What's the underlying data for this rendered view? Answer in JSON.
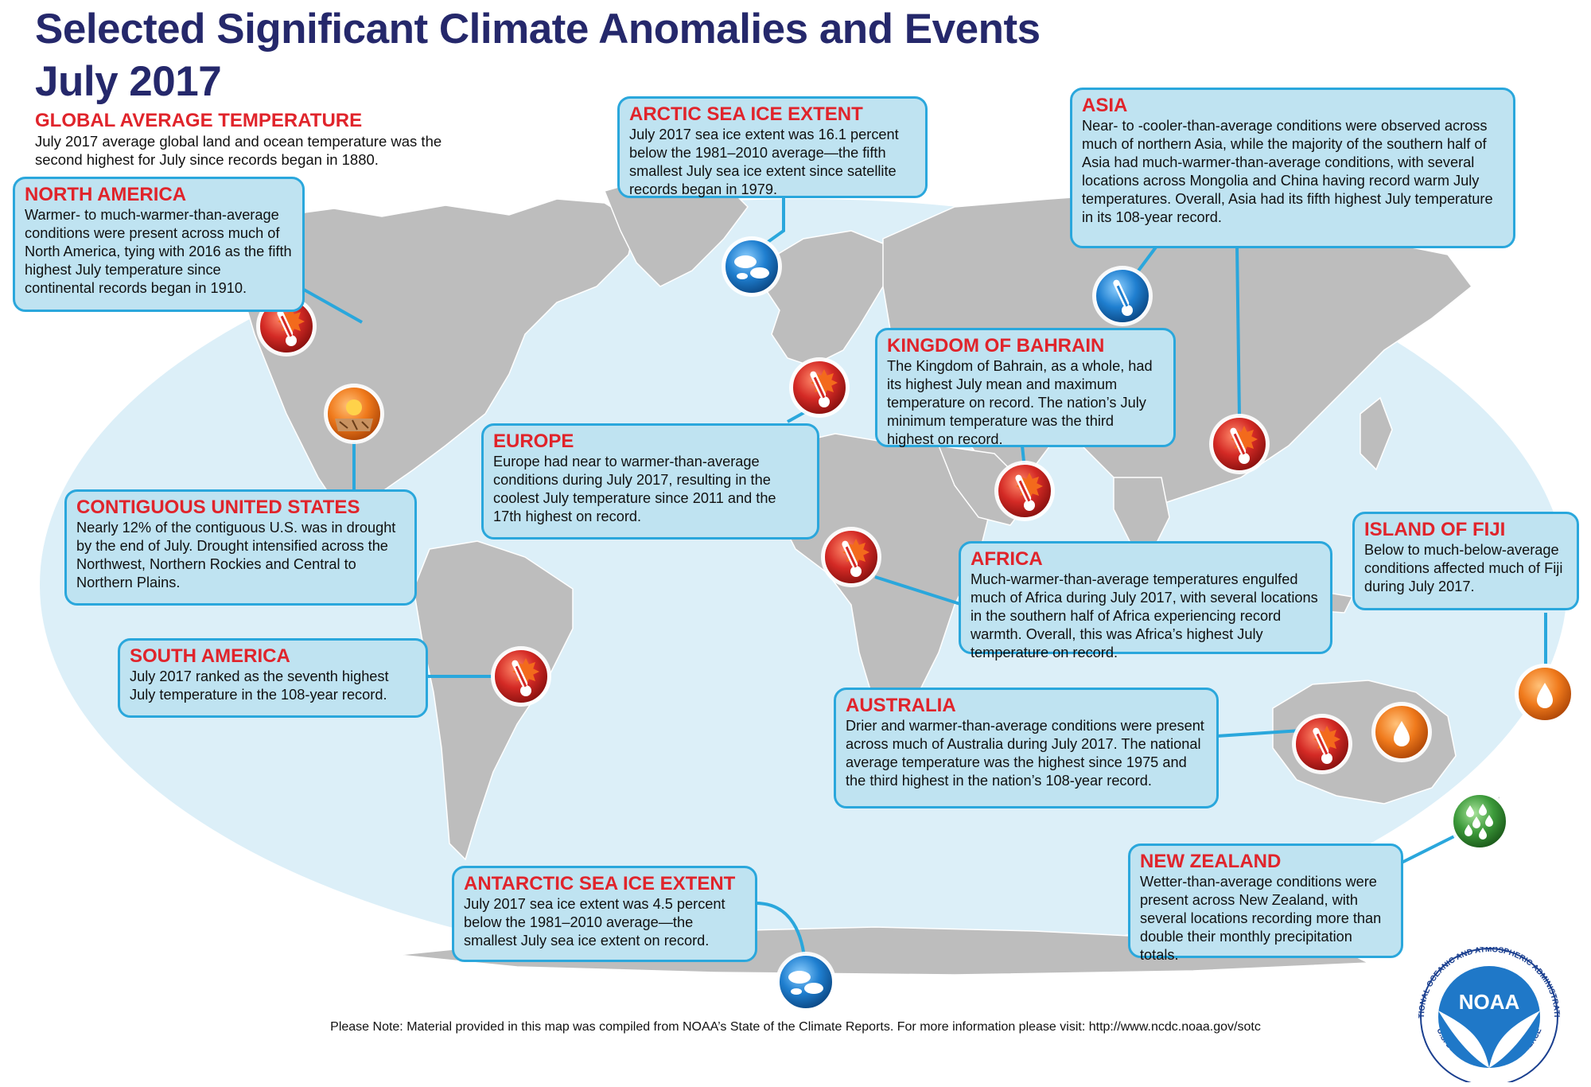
{
  "title": {
    "line1": "Selected Significant Climate Anomalies and Events",
    "line2": "July 2017"
  },
  "global": {
    "heading": "GLOBAL AVERAGE TEMPERATURE",
    "text": "July 2017 average global land and ocean temperature was the second highest for July since records began in 1880."
  },
  "regions": [
    {
      "id": "north-america",
      "heading": "NORTH AMERICA",
      "text": "Warmer- to much-warmer-than-average conditions were present across much of North America, tying with 2016 as the fifth highest July temperature since continental records began in 1910."
    },
    {
      "id": "arctic",
      "heading": "ARCTIC SEA ICE EXTENT",
      "text": "July 2017 sea ice extent was 16.1 percent below the 1981–2010 average—the fifth smallest July sea ice extent since satellite records began in 1979."
    },
    {
      "id": "asia",
      "heading": "ASIA",
      "text": "Near- to -cooler-than-average conditions were observed across much of northern Asia, while the majority of the southern half of Asia had much-warmer-than-average conditions, with several locations across Mongolia and China having record warm July temperatures. Overall, Asia had its fifth highest July temperature in its 108-year record."
    },
    {
      "id": "bahrain",
      "heading": "KINGDOM OF BAHRAIN",
      "text": "The Kingdom of Bahrain, as a whole, had its highest July mean and maximum temperature on record. The nation’s July minimum temperature was the third highest on record."
    },
    {
      "id": "europe",
      "heading": "EUROPE",
      "text": "Europe had near to warmer-than-average conditions during July 2017, resulting in the coolest July temperature since 2011 and the 17th highest on record."
    },
    {
      "id": "contiguous-us",
      "heading": "CONTIGUOUS UNITED STATES",
      "text": "Nearly 12% of the contiguous U.S. was in drought by the end of July. Drought intensified across the Northwest, Northern Rockies and Central to Northern Plains."
    },
    {
      "id": "africa",
      "heading": "AFRICA",
      "text": "Much-warmer-than-average temperatures engulfed much of Africa during July 2017, with several locations in the southern half of Africa experiencing record warmth.  Overall, this was Africa’s highest July temperature on record."
    },
    {
      "id": "fiji",
      "heading": "ISLAND OF FIJI",
      "text": "Below to much-below-average conditions affected much of Fiji during July 2017."
    },
    {
      "id": "south-america",
      "heading": "SOUTH AMERICA",
      "text": "July 2017 ranked as the seventh highest July temperature in the 108-year record."
    },
    {
      "id": "australia",
      "heading": "AUSTRALIA",
      "text": "Drier and warmer-than-average conditions were present across much of Australia during July 2017. The national average temperature was the highest since 1975 and the third highest in the nation’s 108-year record."
    },
    {
      "id": "new-zealand",
      "heading": "NEW ZEALAND",
      "text": "Wetter-than-average conditions were present across New Zealand, with several locations recording more than double their monthly precipitation totals."
    },
    {
      "id": "antarctic",
      "heading": "ANTARCTIC SEA ICE EXTENT",
      "text": "July 2017 sea ice extent was 4.5 percent below the 1981–2010 average—the smallest July sea ice extent on record."
    }
  ],
  "markers": [
    {
      "id": "north-america",
      "icon": "warm-thermometer-icon"
    },
    {
      "id": "contiguous-us",
      "icon": "drought-icon"
    },
    {
      "id": "arctic",
      "icon": "sea-ice-icon"
    },
    {
      "id": "asia-north",
      "icon": "cool-thermometer-icon"
    },
    {
      "id": "asia-south",
      "icon": "warm-thermometer-icon"
    },
    {
      "id": "bahrain",
      "icon": "warm-thermometer-icon"
    },
    {
      "id": "europe",
      "icon": "warm-thermometer-icon"
    },
    {
      "id": "africa",
      "icon": "warm-thermometer-icon"
    },
    {
      "id": "south-america",
      "icon": "warm-thermometer-icon"
    },
    {
      "id": "australia-warm",
      "icon": "warm-thermometer-icon"
    },
    {
      "id": "australia-dry",
      "icon": "dry-icon"
    },
    {
      "id": "fiji",
      "icon": "dry-icon"
    },
    {
      "id": "new-zealand",
      "icon": "wet-icon"
    },
    {
      "id": "antarctic",
      "icon": "sea-ice-icon"
    }
  ],
  "colors": {
    "title": "#25286b",
    "heading": "#e0242b",
    "box_fill": "#bfe3f1",
    "box_border": "#2aa7dc",
    "ocean": "#dceff8",
    "land": "#bdbdbd",
    "warm": "#d42a25",
    "cool": "#1f7fd0",
    "dry": "#f07a1c",
    "wet": "#3c9a3a"
  },
  "note": "Please Note: Material provided in this map was compiled from NOAA’s State of the Climate Reports. For more information please visit: http://www.ncdc.noaa.gov/sotc",
  "logo": {
    "text": "NOAA",
    "ring_text": "NATIONAL OCEANIC AND ATMOSPHERIC ADMINISTRATION",
    "ring_bottom": "U.S. DEPARTMENT OF COMMERCE"
  }
}
